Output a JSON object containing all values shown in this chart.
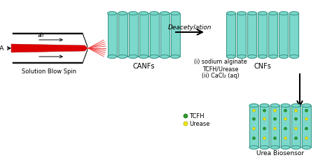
{
  "bg_color": "#ffffff",
  "cyan_color": "#7dd8cc",
  "edge_color": "#3a9a8a",
  "red_color": "#dd0000",
  "black": "#000000",
  "green_dot": "#2ca02c",
  "yellow_dot": "#f0e800",
  "label_canfs": "CANFs",
  "label_cnfs": "CNFs",
  "label_ca": "CA",
  "label_sbs": "Solution Blow Spin",
  "label_deacetylation": "Deacetylation",
  "label_step1a": "(i) sodium alginate",
  "label_step1b": "TCFH/Urease",
  "label_step2": "(ii) CaCl₂ (aq)",
  "label_tcfh": "TCFH",
  "label_urease": "Urease",
  "label_biosensor": "Urea Biosensor",
  "label_air": "air",
  "figsize": [
    4.74,
    2.3
  ],
  "dpi": 100
}
